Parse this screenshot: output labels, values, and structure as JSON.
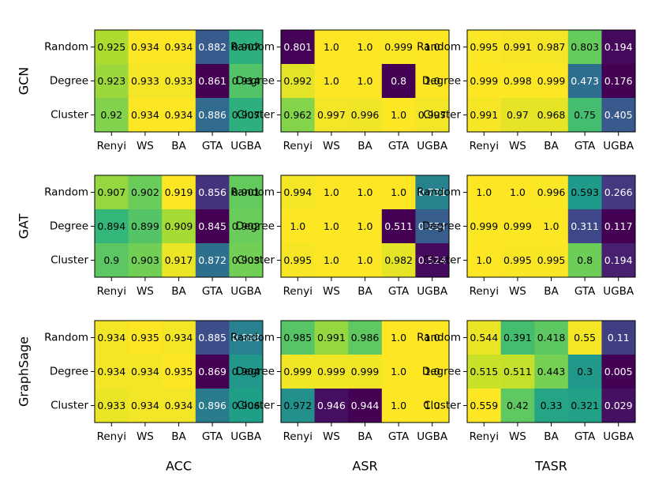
{
  "chart_data": {
    "type": "heatmap",
    "colormap": "viridis",
    "color_scale": "per-panel min-max",
    "row_labels": [
      "Random",
      "Degree",
      "Cluster"
    ],
    "col_labels": [
      "Renyi",
      "WS",
      "BA",
      "GTA",
      "UGBA"
    ],
    "row_titles": [
      "GCN",
      "GAT",
      "GraphSage"
    ],
    "col_titles": [
      "ACC",
      "ASR",
      "TASR"
    ],
    "panels": [
      [
        {
          "values": [
            [
              0.925,
              0.934,
              0.934,
              0.882,
              0.907
            ],
            [
              0.923,
              0.933,
              0.933,
              0.861,
              0.914
            ],
            [
              0.92,
              0.934,
              0.934,
              0.886,
              0.907
            ]
          ],
          "labels": [
            [
              "0.925",
              "0.934",
              "0.934",
              "0.882",
              "0.907"
            ],
            [
              "0.923",
              "0.933",
              "0.933",
              "0.861",
              "0.914"
            ],
            [
              "0.92",
              "0.934",
              "0.934",
              "0.886",
              "0.907"
            ]
          ]
        },
        {
          "values": [
            [
              0.801,
              1.0,
              1.0,
              0.999,
              1.0
            ],
            [
              0.992,
              1.0,
              1.0,
              0.8,
              1.0
            ],
            [
              0.962,
              0.997,
              0.996,
              1.0,
              0.997
            ]
          ],
          "labels": [
            [
              "0.801",
              "1.0",
              "1.0",
              "0.999",
              "1.0"
            ],
            [
              "0.992",
              "1.0",
              "1.0",
              "0.8",
              "1.0"
            ],
            [
              "0.962",
              "0.997",
              "0.996",
              "1.0",
              "0.997"
            ]
          ]
        },
        {
          "values": [
            [
              0.995,
              0.991,
              0.987,
              0.803,
              0.194
            ],
            [
              0.999,
              0.998,
              0.999,
              0.473,
              0.176
            ],
            [
              0.991,
              0.97,
              0.968,
              0.75,
              0.405
            ]
          ],
          "labels": [
            [
              "0.995",
              "0.991",
              "0.987",
              "0.803",
              "0.194"
            ],
            [
              "0.999",
              "0.998",
              "0.999",
              "0.473",
              "0.176"
            ],
            [
              "0.991",
              "0.97",
              "0.968",
              "0.75",
              "0.405"
            ]
          ]
        }
      ],
      [
        {
          "values": [
            [
              0.907,
              0.902,
              0.919,
              0.856,
              0.901
            ],
            [
              0.894,
              0.899,
              0.909,
              0.845,
              0.902
            ],
            [
              0.9,
              0.903,
              0.917,
              0.872,
              0.903
            ]
          ],
          "labels": [
            [
              "0.907",
              "0.902",
              "0.919",
              "0.856",
              "0.901"
            ],
            [
              "0.894",
              "0.899",
              "0.909",
              "0.845",
              "0.902"
            ],
            [
              "0.9",
              "0.903",
              "0.917",
              "0.872",
              "0.903"
            ]
          ]
        },
        {
          "values": [
            [
              0.994,
              1.0,
              1.0,
              1.0,
              0.731
            ],
            [
              1.0,
              1.0,
              1.0,
              0.511,
              0.654
            ],
            [
              0.995,
              1.0,
              1.0,
              0.982,
              0.524
            ]
          ],
          "labels": [
            [
              "0.994",
              "1.0",
              "1.0",
              "1.0",
              "0.731"
            ],
            [
              "1.0",
              "1.0",
              "1.0",
              "0.511",
              "0.654"
            ],
            [
              "0.995",
              "1.0",
              "1.0",
              "0.982",
              "0.524"
            ]
          ]
        },
        {
          "values": [
            [
              1.0,
              1.0,
              0.996,
              0.593,
              0.266
            ],
            [
              0.999,
              0.999,
              1.0,
              0.311,
              0.117
            ],
            [
              1.0,
              0.995,
              0.995,
              0.8,
              0.194
            ]
          ],
          "labels": [
            [
              "1.0",
              "1.0",
              "0.996",
              "0.593",
              "0.266"
            ],
            [
              "0.999",
              "0.999",
              "1.0",
              "0.311",
              "0.117"
            ],
            [
              "1.0",
              "0.995",
              "0.995",
              "0.8",
              "0.194"
            ]
          ]
        }
      ],
      [
        {
          "values": [
            [
              0.934,
              0.935,
              0.934,
              0.885,
              0.898
            ],
            [
              0.934,
              0.934,
              0.935,
              0.869,
              0.904
            ],
            [
              0.933,
              0.934,
              0.934,
              0.896,
              0.906
            ]
          ],
          "labels": [
            [
              "0.934",
              "0.935",
              "0.934",
              "0.885",
              "0.898"
            ],
            [
              "0.934",
              "0.934",
              "0.935",
              "0.869",
              "0.904"
            ],
            [
              "0.933",
              "0.934",
              "0.934",
              "0.896",
              "0.906"
            ]
          ]
        },
        {
          "values": [
            [
              0.985,
              0.991,
              0.986,
              1.0,
              1.0
            ],
            [
              0.999,
              0.999,
              0.999,
              1.0,
              1.0
            ],
            [
              0.972,
              0.946,
              0.944,
              1.0,
              1.0
            ]
          ],
          "labels": [
            [
              "0.985",
              "0.991",
              "0.986",
              "1.0",
              "1.0"
            ],
            [
              "0.999",
              "0.999",
              "0.999",
              "1.0",
              "1.0"
            ],
            [
              "0.972",
              "0.946",
              "0.944",
              "1.0",
              "1.0"
            ]
          ]
        },
        {
          "values": [
            [
              0.544,
              0.391,
              0.418,
              0.55,
              0.11
            ],
            [
              0.515,
              0.511,
              0.443,
              0.3,
              0.005
            ],
            [
              0.559,
              0.42,
              0.33,
              0.321,
              0.029
            ]
          ],
          "labels": [
            [
              "0.544",
              "0.391",
              "0.418",
              "0.55",
              "0.11"
            ],
            [
              "0.515",
              "0.511",
              "0.443",
              "0.3",
              "0.005"
            ],
            [
              "0.559",
              "0.42",
              "0.33",
              "0.321",
              "0.029"
            ]
          ]
        }
      ]
    ]
  }
}
